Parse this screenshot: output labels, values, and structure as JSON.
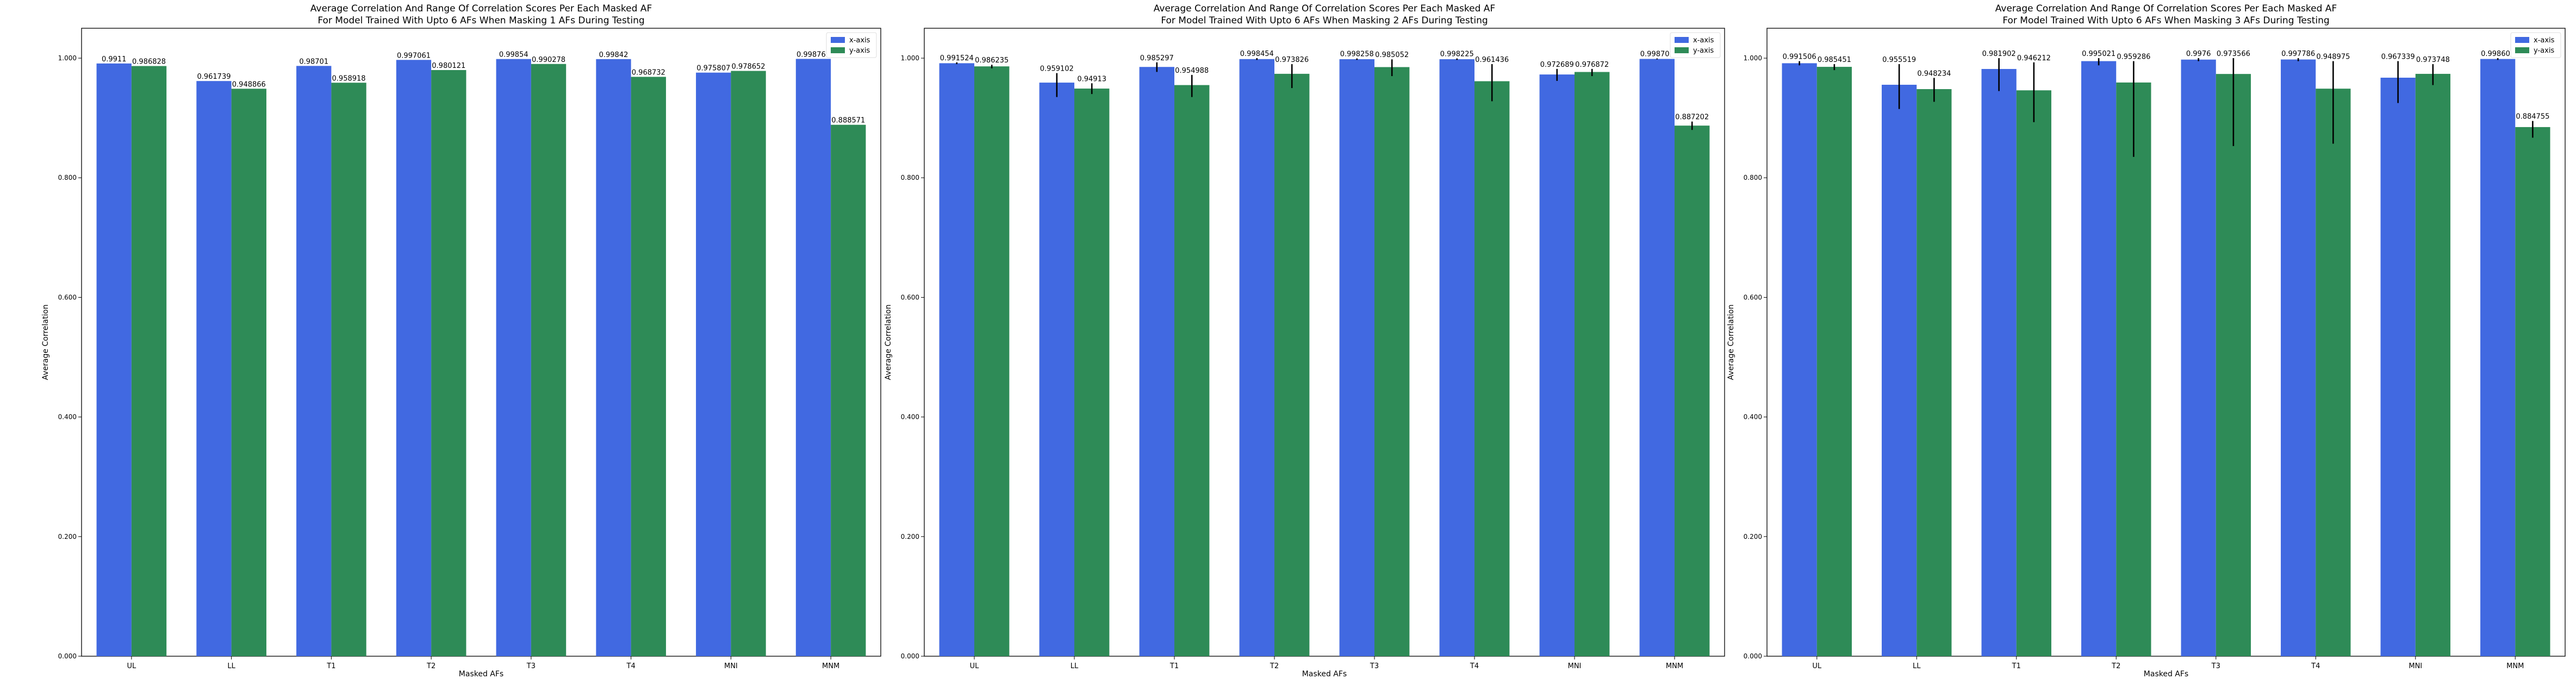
{
  "chart_data": [
    {
      "type": "bar",
      "title": "Average Correlation And Range Of Correlation Scores Per Each Masked AF",
      "subtitle": "For Model Trained With Upto 6 AFs When Masking 1 AFs During Testing",
      "xlabel": "Masked AFs",
      "ylabel": "Average Correlation",
      "ylim": [
        0,
        1.05
      ],
      "yticks": [
        "0.000",
        "0.200",
        "0.400",
        "0.600",
        "0.800",
        "1.000"
      ],
      "legend_position": "top-right",
      "categories": [
        "UL",
        "LL",
        "T1",
        "T2",
        "T3",
        "T4",
        "MNI",
        "MNM"
      ],
      "series": [
        {
          "name": "x-axis",
          "color": "#4169E1",
          "values": [
            0.9911,
            0.961739,
            0.98701,
            0.997061,
            0.99854,
            0.99842,
            0.975807,
            0.998761
          ],
          "labels": [
            "0.9911",
            "0.961739",
            "0.98701",
            "0.997061",
            "0.99854",
            "0.99842",
            "0.975807",
            "0.998761"
          ],
          "err_low": [
            0.9911,
            0.961739,
            0.98701,
            0.997061,
            0.99854,
            0.99842,
            0.975807,
            0.998761
          ],
          "err_high": [
            0.9911,
            0.961739,
            0.98701,
            0.997061,
            0.99854,
            0.99842,
            0.975807,
            0.998761
          ]
        },
        {
          "name": "y-axis",
          "color": "#2E8B57",
          "values": [
            0.986828,
            0.948866,
            0.958918,
            0.980121,
            0.990278,
            0.968732,
            0.978652,
            0.888571
          ],
          "labels": [
            "0.986828",
            "0.948866",
            "0.958918",
            "0.980121",
            "0.990278",
            "0.968732",
            "0.978652",
            "0.888571"
          ],
          "err_low": [
            0.986828,
            0.948866,
            0.958918,
            0.980121,
            0.990278,
            0.968732,
            0.978652,
            0.888571
          ],
          "err_high": [
            0.986828,
            0.948866,
            0.958918,
            0.980121,
            0.990278,
            0.968732,
            0.978652,
            0.888571
          ]
        }
      ]
    },
    {
      "type": "bar",
      "title": "Average Correlation And Range Of Correlation Scores Per Each Masked AF",
      "subtitle": "For Model Trained With Upto 6 AFs When Masking 2 AFs During Testing",
      "xlabel": "Masked AFs",
      "ylabel": "Average Correlation",
      "ylim": [
        0,
        1.05
      ],
      "yticks": [
        "0.000",
        "0.200",
        "0.400",
        "0.600",
        "0.800",
        "1.000"
      ],
      "legend_position": "top-right",
      "categories": [
        "UL",
        "LL",
        "T1",
        "T2",
        "T3",
        "T4",
        "MNI",
        "MNM"
      ],
      "series": [
        {
          "name": "x-axis",
          "color": "#4169E1",
          "values": [
            0.991524,
            0.959102,
            0.985297,
            0.998454,
            0.998258,
            0.998225,
            0.972689,
            0.998707
          ],
          "labels": [
            "0.991524",
            "0.959102",
            "0.985297",
            "0.998454",
            "0.998258",
            "0.998225",
            "0.972689",
            "0.998707"
          ],
          "err_low": [
            0.99,
            0.935,
            0.977,
            0.997,
            0.997,
            0.997,
            0.962,
            0.998
          ],
          "err_high": [
            0.993,
            0.975,
            0.993,
            1.0,
            0.9995,
            0.9995,
            0.982,
            0.9995
          ]
        },
        {
          "name": "y-axis",
          "color": "#2E8B57",
          "values": [
            0.986235,
            0.94913,
            0.954988,
            0.973826,
            0.985052,
            0.961436,
            0.976872,
            0.887202
          ],
          "labels": [
            "0.986235",
            "0.94913",
            "0.954988",
            "0.973826",
            "0.985052",
            "0.961436",
            "0.976872",
            "0.887202"
          ],
          "err_low": [
            0.983,
            0.94,
            0.935,
            0.95,
            0.97,
            0.928,
            0.97,
            0.88
          ],
          "err_high": [
            0.989,
            0.958,
            0.972,
            0.99,
            0.998,
            0.99,
            0.982,
            0.894
          ]
        }
      ]
    },
    {
      "type": "bar",
      "title": "Average Correlation And Range Of Correlation Scores Per Each Masked AF",
      "subtitle": "For Model Trained With Upto 6 AFs When Masking 3 AFs During Testing",
      "xlabel": "Masked AFs",
      "ylabel": "Average Correlation",
      "ylim": [
        0,
        1.05
      ],
      "yticks": [
        "0.000",
        "0.200",
        "0.400",
        "0.600",
        "0.800",
        "1.000"
      ],
      "legend_position": "top-right",
      "categories": [
        "UL",
        "LL",
        "T1",
        "T2",
        "T3",
        "T4",
        "MNI",
        "MNM"
      ],
      "series": [
        {
          "name": "x-axis",
          "color": "#4169E1",
          "values": [
            0.991506,
            0.955519,
            0.981902,
            0.995021,
            0.9976,
            0.997786,
            0.967339,
            0.998601
          ],
          "labels": [
            "0.991506",
            "0.955519",
            "0.981902",
            "0.995021",
            "0.9976",
            "0.997786",
            "0.967339",
            "0.998601"
          ],
          "err_low": [
            0.988,
            0.915,
            0.945,
            0.988,
            0.995,
            0.995,
            0.925,
            0.997
          ],
          "err_high": [
            0.995,
            0.99,
            1.0,
            1.0,
            1.0,
            1.0,
            0.995,
            1.0
          ]
        },
        {
          "name": "y-axis",
          "color": "#2E8B57",
          "values": [
            0.985451,
            0.948234,
            0.946212,
            0.959286,
            0.973566,
            0.948975,
            0.973748,
            0.884755
          ],
          "labels": [
            "0.985451",
            "0.948234",
            "0.946212",
            "0.959286",
            "0.973566",
            "0.948975",
            "0.973748",
            "0.884755"
          ],
          "err_low": [
            0.98,
            0.927,
            0.893,
            0.835,
            0.853,
            0.857,
            0.955,
            0.867
          ],
          "err_high": [
            0.99,
            0.967,
            0.993,
            0.995,
            1.0,
            0.995,
            0.99,
            0.895
          ]
        }
      ]
    }
  ]
}
